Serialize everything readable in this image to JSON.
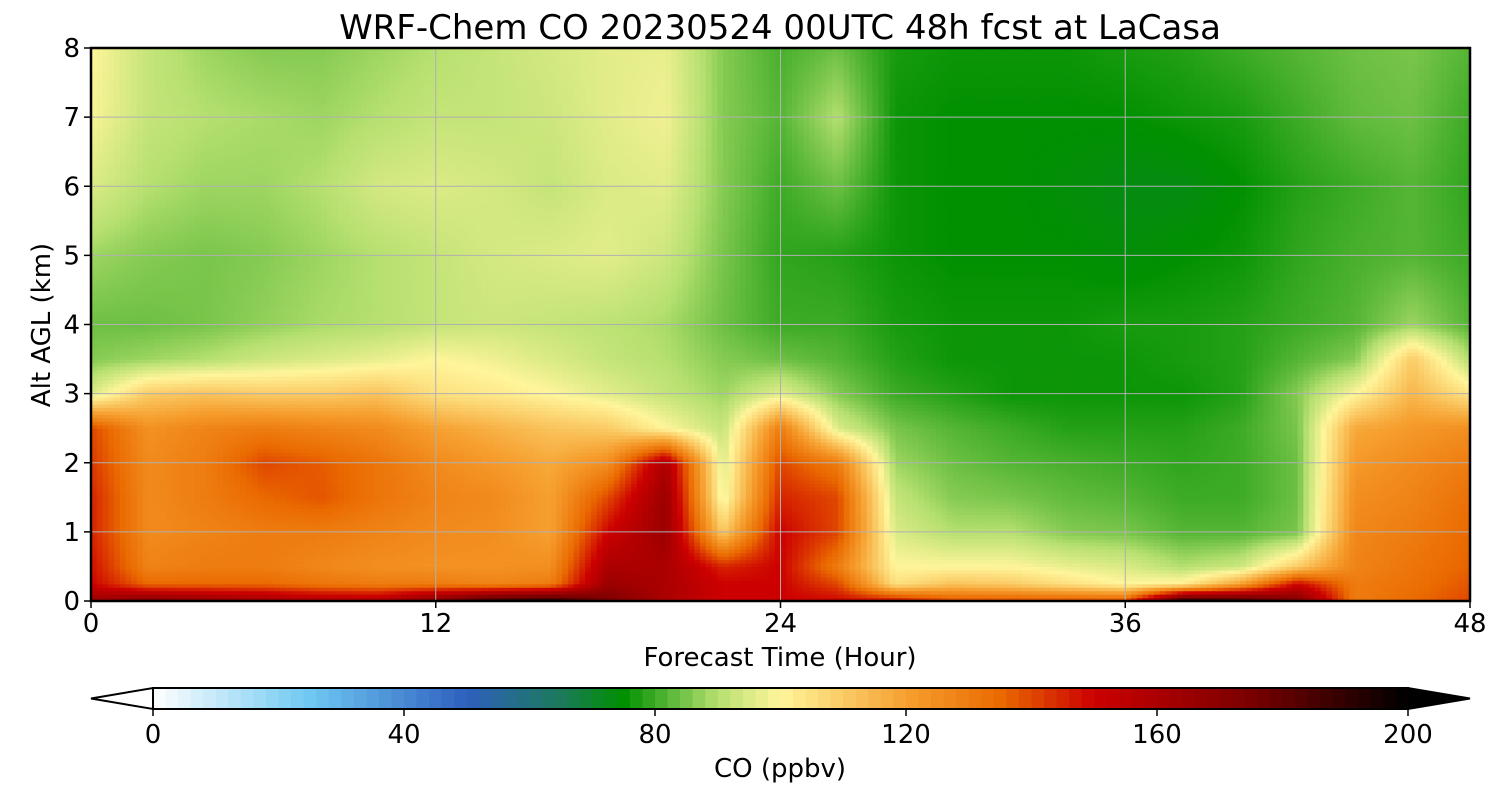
{
  "chart_data": {
    "type": "heatmap",
    "title": "WRF-Chem CO  20230524 00UTC 48h fcst at LaCasa",
    "xlabel": "Forecast Time (Hour)",
    "ylabel": "Alt AGL (km)",
    "x_ticks": [
      0,
      12,
      24,
      36,
      48
    ],
    "y_ticks": [
      0,
      1,
      2,
      3,
      4,
      5,
      6,
      7,
      8
    ],
    "xlim": [
      0,
      48
    ],
    "ylim": [
      0,
      8
    ],
    "grid": true,
    "colorbar": {
      "label": "CO  (ppbv)",
      "ticks": [
        0,
        40,
        80,
        120,
        160,
        200
      ],
      "range": [
        0,
        200
      ],
      "extend": "both",
      "stops": [
        {
          "v": 0,
          "c": "#ffffff"
        },
        {
          "v": 25,
          "c": "#6ec8f2"
        },
        {
          "v": 50,
          "c": "#2e5fbe"
        },
        {
          "v": 65,
          "c": "#1c7a5a"
        },
        {
          "v": 75,
          "c": "#009000"
        },
        {
          "v": 90,
          "c": "#b6e070"
        },
        {
          "v": 100,
          "c": "#fff59a"
        },
        {
          "v": 120,
          "c": "#f6a030"
        },
        {
          "v": 135,
          "c": "#ea6a00"
        },
        {
          "v": 150,
          "c": "#cc0000"
        },
        {
          "v": 175,
          "c": "#7a0000"
        },
        {
          "v": 200,
          "c": "#000000"
        }
      ]
    },
    "x": [
      0,
      2,
      4,
      6,
      8,
      10,
      12,
      14,
      16,
      18,
      20,
      22,
      24,
      26,
      28,
      30,
      32,
      34,
      36,
      38,
      40,
      42,
      44,
      46,
      48
    ],
    "y": [
      0,
      0.25,
      0.5,
      1,
      1.5,
      2,
      2.5,
      3,
      3.5,
      4,
      5,
      6,
      7,
      8
    ],
    "z": [
      [
        165,
        175,
        170,
        165,
        160,
        160,
        175,
        190,
        195,
        175,
        160,
        150,
        150,
        150,
        150,
        140,
        140,
        140,
        140,
        195,
        190,
        175,
        130,
        135,
        140
      ],
      [
        150,
        135,
        135,
        135,
        132,
        130,
        130,
        128,
        130,
        165,
        160,
        150,
        150,
        140,
        105,
        112,
        110,
        105,
        100,
        102,
        120,
        150,
        130,
        133,
        138
      ],
      [
        148,
        128,
        130,
        130,
        127,
        125,
        124,
        124,
        125,
        160,
        160,
        145,
        150,
        130,
        100,
        100,
        100,
        97,
        95,
        90,
        93,
        110,
        128,
        132,
        136
      ],
      [
        145,
        126,
        128,
        130,
        130,
        128,
        126,
        125,
        120,
        150,
        165,
        110,
        150,
        140,
        95,
        90,
        90,
        86,
        85,
        82,
        82,
        85,
        127,
        130,
        135
      ],
      [
        145,
        126,
        130,
        135,
        138,
        132,
        128,
        126,
        120,
        140,
        165,
        97,
        145,
        140,
        92,
        86,
        85,
        83,
        82,
        80,
        80,
        84,
        125,
        128,
        133
      ],
      [
        142,
        126,
        130,
        140,
        137,
        132,
        126,
        122,
        118,
        125,
        160,
        95,
        140,
        130,
        88,
        84,
        82,
        81,
        80,
        79,
        80,
        84,
        122,
        126,
        130
      ],
      [
        140,
        124,
        128,
        130,
        128,
        126,
        120,
        116,
        112,
        110,
        100,
        92,
        130,
        95,
        85,
        82,
        80,
        78,
        78,
        78,
        80,
        85,
        118,
        122,
        125
      ],
      [
        95,
        110,
        112,
        110,
        110,
        112,
        105,
        103,
        100,
        96,
        92,
        88,
        96,
        86,
        80,
        78,
        76,
        76,
        76,
        76,
        78,
        86,
        100,
        115,
        104
      ],
      [
        86,
        88,
        90,
        93,
        95,
        97,
        100,
        98,
        95,
        92,
        90,
        86,
        84,
        82,
        78,
        76,
        76,
        76,
        76,
        77,
        78,
        82,
        86,
        110,
        90
      ],
      [
        84,
        84,
        85,
        87,
        89,
        90,
        92,
        93,
        92,
        91,
        89,
        84,
        80,
        80,
        77,
        76,
        76,
        76,
        77,
        77,
        78,
        80,
        82,
        88,
        82
      ],
      [
        88,
        86,
        85,
        86,
        88,
        90,
        92,
        94,
        95,
        96,
        93,
        85,
        79,
        78,
        76,
        75,
        75,
        75,
        74,
        75,
        76,
        79,
        81,
        82,
        80
      ],
      [
        95,
        90,
        88,
        88,
        90,
        94,
        95,
        94,
        92,
        95,
        96,
        86,
        80,
        84,
        76,
        75,
        75,
        74,
        73,
        73,
        75,
        78,
        80,
        82,
        79
      ],
      [
        99,
        92,
        90,
        89,
        88,
        90,
        92,
        92,
        93,
        96,
        98,
        86,
        82,
        90,
        76,
        75,
        75,
        75,
        75,
        76,
        77,
        80,
        83,
        84,
        80
      ],
      [
        100,
        92,
        88,
        86,
        86,
        88,
        90,
        92,
        94,
        96,
        97,
        86,
        81,
        84,
        77,
        76,
        76,
        76,
        77,
        78,
        80,
        82,
        84,
        85,
        82
      ]
    ]
  }
}
